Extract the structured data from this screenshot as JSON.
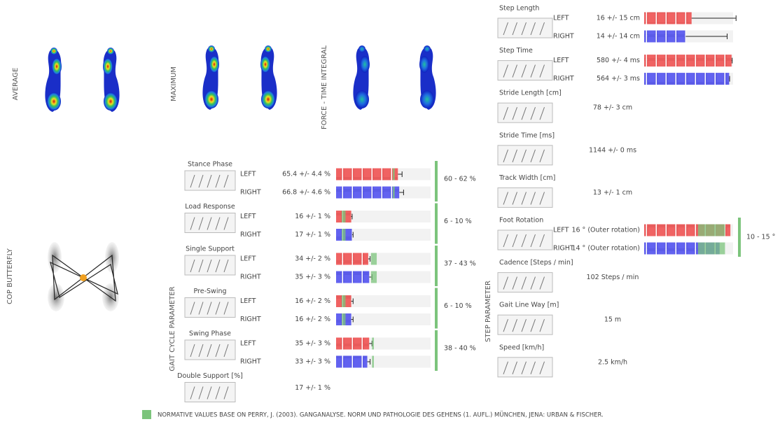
{
  "heatmaps": {
    "average": "AVERAGE",
    "maximum": "MAXIMUM",
    "fti": "FORCE - TIME INTEGRAL",
    "cop": "COP BUTTERFLY"
  },
  "gait_cycle": {
    "title": "GAIT CYCLE PARAMETER",
    "rows": [
      {
        "name": "Stance Phase",
        "left": {
          "side": "LEFT",
          "label": "65.4 +/- 4.4 %",
          "mean": 65.4,
          "sd": 4.4
        },
        "right": {
          "side": "RIGHT",
          "label": "66.8 +/- 4.6 %",
          "mean": 66.8,
          "sd": 4.6
        },
        "norm": {
          "label": "60 - 62 %",
          "min": 60,
          "max": 62
        }
      },
      {
        "name": "Load Response",
        "left": {
          "side": "LEFT",
          "label": "16 +/- 1 %",
          "mean": 16,
          "sd": 1
        },
        "right": {
          "side": "RIGHT",
          "label": "17 +/- 1 %",
          "mean": 17,
          "sd": 1
        },
        "norm": {
          "label": "6 - 10 %",
          "min": 6,
          "max": 10
        }
      },
      {
        "name": "Single Support",
        "left": {
          "side": "LEFT",
          "label": "34 +/- 2 %",
          "mean": 34,
          "sd": 2
        },
        "right": {
          "side": "RIGHT",
          "label": "35 +/- 3 %",
          "mean": 35,
          "sd": 3
        },
        "norm": {
          "label": "37 - 43 %",
          "min": 37,
          "max": 43
        }
      },
      {
        "name": "Pre-Swing",
        "left": {
          "side": "LEFT",
          "label": "16 +/- 2 %",
          "mean": 16,
          "sd": 2
        },
        "right": {
          "side": "RIGHT",
          "label": "16 +/- 2 %",
          "mean": 16,
          "sd": 2
        },
        "norm": {
          "label": "6 - 10 %",
          "min": 6,
          "max": 10
        }
      },
      {
        "name": "Swing Phase",
        "left": {
          "side": "LEFT",
          "label": "35 +/- 3 %",
          "mean": 35,
          "sd": 3
        },
        "right": {
          "side": "RIGHT",
          "label": "33 +/- 3 %",
          "mean": 33,
          "sd": 3
        },
        "norm": {
          "label": "38 - 40 %",
          "min": 38,
          "max": 40
        }
      },
      {
        "name": "Double Support [%]",
        "value": "17 +/- 1 %"
      }
    ]
  },
  "step": {
    "title": "STEP PARAMETER",
    "rows": [
      {
        "name": "Step Length",
        "left": {
          "side": "LEFT",
          "label": "16 +/- 15 cm",
          "mean": 16,
          "sd": 15
        },
        "right": {
          "side": "RIGHT",
          "label": "14 +/- 14 cm",
          "mean": 14,
          "sd": 14
        }
      },
      {
        "name": "Step Time",
        "left": {
          "side": "LEFT",
          "label": "580 +/- 4 ms",
          "mean": 580,
          "sd": 4
        },
        "right": {
          "side": "RIGHT",
          "label": "564 +/- 3 ms",
          "mean": 564,
          "sd": 3
        }
      },
      {
        "name": "Stride Length [cm]",
        "value": "78 +/- 3 cm"
      },
      {
        "name": "Stride Time [ms]",
        "value": "1144 +/- 0 ms"
      },
      {
        "name": "Track Width [cm]",
        "value": "13 +/- 1 cm"
      },
      {
        "name": "Foot Rotation",
        "left": {
          "side": "LEFT",
          "label": "16 ° (Outer rotation)",
          "mean": 16
        },
        "right": {
          "side": "RIGHT",
          "label": "14 ° (Outer rotation)",
          "mean": 14
        },
        "norm": {
          "label": "10 - 15 °",
          "min": 10,
          "max": 15
        }
      },
      {
        "name": "Cadence [Steps / min]",
        "value": "102 Steps / min"
      },
      {
        "name": "Gait Line Way [m]",
        "value": "15 m"
      },
      {
        "name": "Speed [km/h]",
        "value": "2.5 km/h"
      }
    ]
  },
  "footnote": "NORMATIVE VALUES BASE ON PERRY, J. (2003). GANGANALYSE. NORM UND PATHOLOGIE DES GEHENS (1. AUFL.) MÜNCHEN, JENA: URBAN & FISCHER."
}
